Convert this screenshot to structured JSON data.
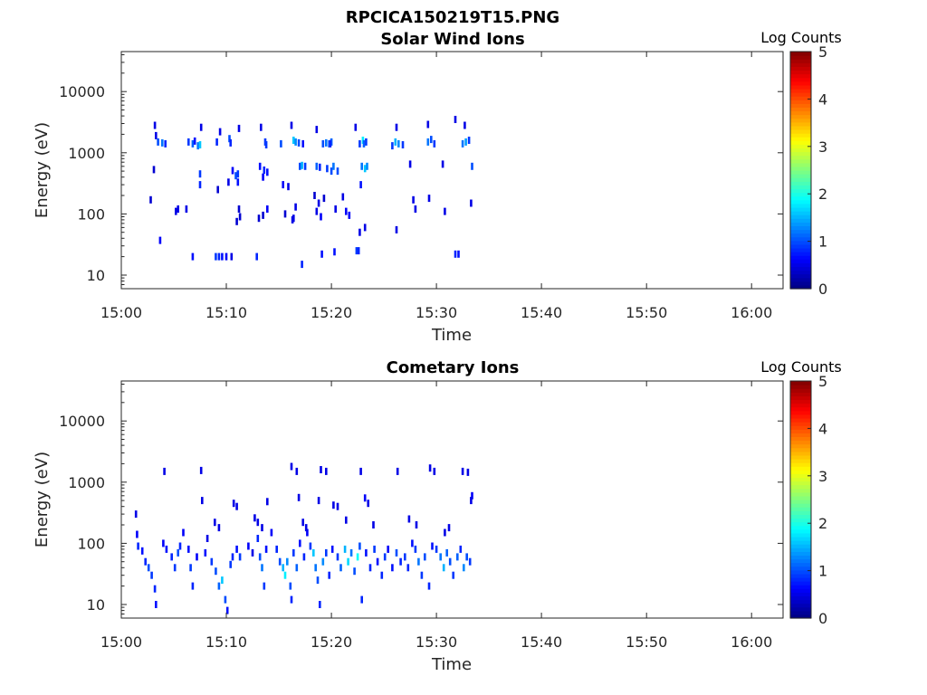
{
  "figure": {
    "title": "RPCICA150219T15.PNG"
  },
  "colorbar": {
    "label": "Log Counts",
    "ticks": [
      "0",
      "1",
      "2",
      "3",
      "4",
      "5"
    ],
    "range": [
      0,
      5
    ],
    "colormap": "jet"
  },
  "chart_data": [
    {
      "type": "heatmap",
      "title": "Solar Wind Ions",
      "xlabel": "Time",
      "ylabel": "Energy (eV)",
      "x_ticks": [
        "15:00",
        "15:10",
        "15:20",
        "15:30",
        "15:40",
        "15:50",
        "16:00"
      ],
      "y_ticks": [
        "10",
        "100",
        "1000",
        "10000"
      ],
      "y_scale": "log",
      "xlim": [
        "15:00",
        "16:03"
      ],
      "ylim": [
        6,
        45000
      ],
      "points": [
        [
          "15:03.2",
          2800,
          0.5
        ],
        [
          "15:03.3",
          1900,
          0.5
        ],
        [
          "15:03.5",
          1500,
          1.0
        ],
        [
          "15:03.9",
          1450,
          1.2
        ],
        [
          "15:04.2",
          1400,
          0.8
        ],
        [
          "15:03.1",
          530,
          0.4
        ],
        [
          "15:02.8",
          170,
          0.4
        ],
        [
          "15:03.7",
          37,
          0.6
        ],
        [
          "15:05.2",
          110,
          0.5
        ],
        [
          "15:05.4",
          120,
          0.5
        ],
        [
          "15:06.4",
          1500,
          0.9
        ],
        [
          "15:06.8",
          1400,
          1.1
        ],
        [
          "15:07.0",
          1550,
          0.7
        ],
        [
          "15:07.3",
          1300,
          1.2
        ],
        [
          "15:07.5",
          1350,
          1.6
        ],
        [
          "15:07.6",
          2600,
          0.5
        ],
        [
          "15:07.5",
          450,
          0.9
        ],
        [
          "15:07.5",
          300,
          0.8
        ],
        [
          "15:06.2",
          120,
          0.5
        ],
        [
          "15:06.8",
          20,
          0.7
        ],
        [
          "15:09.1",
          1500,
          0.8
        ],
        [
          "15:09.4",
          2200,
          0.5
        ],
        [
          "15:09.2",
          250,
          0.4
        ],
        [
          "15:10.3",
          1700,
          1.0
        ],
        [
          "15:10.4",
          1450,
          0.8
        ],
        [
          "15:10.6",
          510,
          0.6
        ],
        [
          "15:10.9",
          420,
          1.0
        ],
        [
          "15:11.1",
          450,
          0.9
        ],
        [
          "15:11.1",
          330,
          0.7
        ],
        [
          "15:11.2",
          2500,
          0.5
        ],
        [
          "15:10.2",
          330,
          0.5
        ],
        [
          "15:11.2",
          120,
          0.4
        ],
        [
          "15:11.3",
          90,
          0.4
        ],
        [
          "15:11.0",
          75,
          0.4
        ],
        [
          "15:09.0",
          20,
          0.9
        ],
        [
          "15:09.3",
          20,
          0.8
        ],
        [
          "15:09.6",
          20,
          0.7
        ],
        [
          "15:10.0",
          20,
          0.6
        ],
        [
          "15:10.5",
          20,
          0.5
        ],
        [
          "15:12.9",
          20,
          0.8
        ],
        [
          "15:13.3",
          2600,
          0.5
        ],
        [
          "15:13.7",
          1500,
          0.9
        ],
        [
          "15:13.8",
          1350,
          0.9
        ],
        [
          "15:13.2",
          600,
          0.7
        ],
        [
          "15:13.6",
          520,
          0.8
        ],
        [
          "15:13.9",
          480,
          0.7
        ],
        [
          "15:13.5",
          400,
          0.6
        ],
        [
          "15:13.9",
          120,
          0.6
        ],
        [
          "15:13.1",
          85,
          0.4
        ],
        [
          "15:13.5",
          95,
          0.4
        ],
        [
          "15:15.2",
          1400,
          1.0
        ],
        [
          "15:16.2",
          2800,
          0.5
        ],
        [
          "15:16.4",
          1600,
          1.6
        ],
        [
          "15:16.6",
          1500,
          1.3
        ],
        [
          "15:16.9",
          1450,
          1.0
        ],
        [
          "15:17.3",
          1400,
          0.7
        ],
        [
          "15:15.4",
          300,
          0.6
        ],
        [
          "15:15.9",
          280,
          0.5
        ],
        [
          "15:16.6",
          130,
          0.5
        ],
        [
          "15:16.3",
          80,
          0.5
        ],
        [
          "15:15.6",
          100,
          0.4
        ],
        [
          "15:16.4",
          85,
          0.5
        ],
        [
          "15:17.0",
          600,
          1.0
        ],
        [
          "15:17.2",
          620,
          1.5
        ],
        [
          "15:17.5",
          600,
          0.9
        ],
        [
          "15:17.2",
          15,
          0.8
        ],
        [
          "15:18.6",
          600,
          1.1
        ],
        [
          "15:18.9",
          580,
          0.8
        ],
        [
          "15:18.6",
          2400,
          0.5
        ],
        [
          "15:18.4",
          200,
          0.4
        ],
        [
          "15:18.8",
          150,
          0.5
        ],
        [
          "15:18.6",
          110,
          0.5
        ],
        [
          "15:19.0",
          90,
          0.6
        ],
        [
          "15:19.3",
          180,
          0.4
        ],
        [
          "15:19.2",
          1400,
          1.0
        ],
        [
          "15:19.5",
          1450,
          1.2
        ],
        [
          "15:19.8",
          1400,
          1.0
        ],
        [
          "15:20.0",
          1500,
          1.1
        ],
        [
          "15:19.9",
          1400,
          0.8
        ],
        [
          "15:19.6",
          550,
          0.9
        ],
        [
          "15:20.0",
          500,
          1.0
        ],
        [
          "15:20.2",
          600,
          1.2
        ],
        [
          "15:20.6",
          500,
          1.0
        ],
        [
          "15:20.4",
          120,
          0.5
        ],
        [
          "15:21.1",
          190,
          0.5
        ],
        [
          "15:21.4",
          110,
          0.6
        ],
        [
          "15:21.7",
          95,
          0.6
        ],
        [
          "15:19.1",
          22,
          0.7
        ],
        [
          "15:20.3",
          24,
          0.7
        ],
        [
          "15:22.3",
          2600,
          0.5
        ],
        [
          "15:22.7",
          1400,
          0.9
        ],
        [
          "15:23.0",
          1600,
          1.8
        ],
        [
          "15:23.1",
          1400,
          1.1
        ],
        [
          "15:23.3",
          1500,
          0.9
        ],
        [
          "15:22.9",
          600,
          1.2
        ],
        [
          "15:23.2",
          550,
          1.6
        ],
        [
          "15:23.4",
          600,
          1.3
        ],
        [
          "15:22.8",
          300,
          0.7
        ],
        [
          "15:22.7",
          50,
          0.5
        ],
        [
          "15:23.2",
          60,
          0.5
        ],
        [
          "15:22.4",
          25,
          0.9
        ],
        [
          "15:22.6",
          25,
          0.8
        ],
        [
          "15:25.8",
          1300,
          0.9
        ],
        [
          "15:26.1",
          1500,
          1.5
        ],
        [
          "15:26.4",
          1400,
          1.3
        ],
        [
          "15:26.8",
          1350,
          0.9
        ],
        [
          "15:26.2",
          2600,
          0.5
        ],
        [
          "15:26.2",
          55,
          0.5
        ],
        [
          "15:27.5",
          650,
          0.5
        ],
        [
          "15:27.8",
          170,
          0.5
        ],
        [
          "15:28.0",
          120,
          0.5
        ],
        [
          "15:29.2",
          1500,
          1.2
        ],
        [
          "15:29.5",
          1650,
          1.0
        ],
        [
          "15:29.8",
          1400,
          0.9
        ],
        [
          "15:29.3",
          180,
          0.5
        ],
        [
          "15:29.2",
          2900,
          0.5
        ],
        [
          "15:30.6",
          650,
          0.5
        ],
        [
          "15:30.8",
          110,
          0.5
        ],
        [
          "15:31.8",
          3500,
          0.5
        ],
        [
          "15:32.5",
          1400,
          1.2
        ],
        [
          "15:32.8",
          1500,
          1.4
        ],
        [
          "15:33.1",
          1600,
          0.9
        ],
        [
          "15:33.4",
          600,
          1.0
        ],
        [
          "15:33.3",
          150,
          0.5
        ],
        [
          "15:32.7",
          2800,
          0.5
        ],
        [
          "15:31.8",
          22,
          0.8
        ],
        [
          "15:32.1",
          22,
          0.7
        ]
      ]
    },
    {
      "type": "heatmap",
      "title": "Cometary Ions",
      "xlabel": "Time",
      "ylabel": "Energy (eV)",
      "x_ticks": [
        "15:00",
        "15:10",
        "15:20",
        "15:30",
        "15:40",
        "15:50",
        "16:00"
      ],
      "y_ticks": [
        "10",
        "100",
        "1000",
        "10000"
      ],
      "y_scale": "log",
      "xlim": [
        "15:00",
        "16:03"
      ],
      "ylim": [
        6,
        45000
      ],
      "points": [
        [
          "15:01.4",
          300,
          0.5
        ],
        [
          "15:01.5",
          140,
          0.6
        ],
        [
          "15:01.6",
          90,
          0.8
        ],
        [
          "15:02.0",
          75,
          0.7
        ],
        [
          "15:02.3",
          50,
          0.8
        ],
        [
          "15:02.6",
          40,
          1.0
        ],
        [
          "15:02.9",
          30,
          0.9
        ],
        [
          "15:03.2",
          18,
          0.8
        ],
        [
          "15:03.3",
          10,
          0.7
        ],
        [
          "15:04.0",
          100,
          0.6
        ],
        [
          "15:04.3",
          80,
          0.7
        ],
        [
          "15:04.8",
          60,
          0.8
        ],
        [
          "15:05.1",
          40,
          0.9
        ],
        [
          "15:05.4",
          70,
          1.0
        ],
        [
          "15:05.6",
          90,
          0.8
        ],
        [
          "15:05.9",
          150,
          0.6
        ],
        [
          "15:06.4",
          80,
          0.7
        ],
        [
          "15:06.6",
          40,
          0.9
        ],
        [
          "15:06.8",
          20,
          0.8
        ],
        [
          "15:07.2",
          60,
          0.6
        ],
        [
          "15:08.0",
          70,
          0.7
        ],
        [
          "15:08.2",
          120,
          0.5
        ],
        [
          "15:08.6",
          50,
          0.9
        ],
        [
          "15:09.0",
          35,
          1.0
        ],
        [
          "15:09.3",
          20,
          1.1
        ],
        [
          "15:09.6",
          25,
          1.6
        ],
        [
          "15:09.9",
          12,
          1.0
        ],
        [
          "15:10.1",
          8,
          0.7
        ],
        [
          "15:10.4",
          45,
          0.9
        ],
        [
          "15:10.6",
          60,
          0.8
        ],
        [
          "15:11.0",
          80,
          0.7
        ],
        [
          "15:11.3",
          60,
          0.9
        ],
        [
          "15:12.1",
          90,
          0.6
        ],
        [
          "15:12.5",
          70,
          0.5
        ],
        [
          "15:13.0",
          120,
          0.8
        ],
        [
          "15:13.2",
          60,
          1.0
        ],
        [
          "15:13.4",
          40,
          1.2
        ],
        [
          "15:13.6",
          20,
          0.9
        ],
        [
          "15:13.8",
          80,
          0.7
        ],
        [
          "15:14.3",
          150,
          0.6
        ],
        [
          "15:14.8",
          80,
          0.8
        ],
        [
          "15:15.1",
          50,
          1.0
        ],
        [
          "15:15.4",
          40,
          1.5
        ],
        [
          "15:15.6",
          30,
          1.8
        ],
        [
          "15:15.8",
          50,
          1.3
        ],
        [
          "15:16.1",
          20,
          1.0
        ],
        [
          "15:16.2",
          12,
          0.8
        ],
        [
          "15:16.4",
          70,
          0.9
        ],
        [
          "15:16.7",
          40,
          1.1
        ],
        [
          "15:17.0",
          100,
          0.7
        ],
        [
          "15:17.4",
          60,
          0.8
        ],
        [
          "15:17.7",
          150,
          0.6
        ],
        [
          "15:18.0",
          90,
          0.9
        ],
        [
          "15:18.3",
          70,
          1.6
        ],
        [
          "15:18.5",
          40,
          1.2
        ],
        [
          "15:18.7",
          25,
          1.0
        ],
        [
          "15:18.9",
          10,
          0.8
        ],
        [
          "15:19.2",
          50,
          1.3
        ],
        [
          "15:19.5",
          70,
          0.9
        ],
        [
          "15:19.8",
          30,
          0.8
        ],
        [
          "15:20.1",
          80,
          0.7
        ],
        [
          "15:20.6",
          60,
          0.9
        ],
        [
          "15:20.9",
          40,
          1.1
        ],
        [
          "15:21.3",
          80,
          1.5
        ],
        [
          "15:21.6",
          50,
          1.7
        ],
        [
          "15:21.9",
          70,
          1.2
        ],
        [
          "15:22.2",
          35,
          1.0
        ],
        [
          "15:22.5",
          60,
          1.9
        ],
        [
          "15:22.7",
          90,
          1.0
        ],
        [
          "15:22.9",
          12,
          0.8
        ],
        [
          "15:23.3",
          70,
          0.7
        ],
        [
          "15:23.7",
          40,
          0.8
        ],
        [
          "15:24.1",
          80,
          0.9
        ],
        [
          "15:24.4",
          50,
          0.7
        ],
        [
          "15:24.8",
          30,
          0.8
        ],
        [
          "15:25.1",
          60,
          0.9
        ],
        [
          "15:25.4",
          80,
          0.6
        ],
        [
          "15:25.8",
          40,
          0.7
        ],
        [
          "15:26.2",
          70,
          1.0
        ],
        [
          "15:26.6",
          50,
          0.8
        ],
        [
          "15:27.0",
          60,
          0.9
        ],
        [
          "15:27.3",
          40,
          0.8
        ],
        [
          "15:27.7",
          100,
          0.7
        ],
        [
          "15:28.0",
          80,
          0.9
        ],
        [
          "15:28.3",
          50,
          1.2
        ],
        [
          "15:28.6",
          30,
          0.9
        ],
        [
          "15:28.9",
          60,
          1.0
        ],
        [
          "15:29.3",
          20,
          0.8
        ],
        [
          "15:29.6",
          90,
          0.7
        ],
        [
          "15:30.0",
          80,
          0.9
        ],
        [
          "15:30.4",
          60,
          1.2
        ],
        [
          "15:30.7",
          40,
          1.5
        ],
        [
          "15:31.0",
          70,
          1.1
        ],
        [
          "15:31.3",
          50,
          1.0
        ],
        [
          "15:31.6",
          30,
          0.9
        ],
        [
          "15:32.0",
          60,
          1.1
        ],
        [
          "15:32.3",
          80,
          0.8
        ],
        [
          "15:32.6",
          40,
          1.3
        ],
        [
          "15:32.9",
          60,
          1.0
        ],
        [
          "15:33.2",
          50,
          0.9
        ],
        [
          "15:04.1",
          1500,
          0.5
        ],
        [
          "15:07.6",
          1550,
          0.5
        ],
        [
          "15:16.2",
          1800,
          0.5
        ],
        [
          "15:16.7",
          1500,
          0.5
        ],
        [
          "15:19.0",
          1600,
          0.5
        ],
        [
          "15:19.5",
          1500,
          0.5
        ],
        [
          "15:22.8",
          1500,
          0.5
        ],
        [
          "15:26.3",
          1500,
          0.5
        ],
        [
          "15:29.4",
          1700,
          0.5
        ],
        [
          "15:29.8",
          1500,
          0.5
        ],
        [
          "15:32.5",
          1500,
          0.5
        ],
        [
          "15:33.0",
          1450,
          0.5
        ],
        [
          "15:33.4",
          600,
          0.6
        ],
        [
          "15:33.3",
          500,
          0.5
        ],
        [
          "15:07.7",
          500,
          0.5
        ],
        [
          "15:10.7",
          450,
          0.5
        ],
        [
          "15:11.0",
          400,
          0.5
        ],
        [
          "15:13.9",
          480,
          0.5
        ],
        [
          "15:16.9",
          560,
          0.5
        ],
        [
          "15:18.8",
          500,
          0.5
        ],
        [
          "15:20.2",
          420,
          0.5
        ],
        [
          "15:20.6",
          400,
          0.5
        ],
        [
          "15:23.2",
          550,
          0.6
        ],
        [
          "15:23.5",
          450,
          0.5
        ],
        [
          "15:08.9",
          220,
          0.5
        ],
        [
          "15:09.3",
          180,
          0.5
        ],
        [
          "15:12.7",
          260,
          0.5
        ],
        [
          "15:13.0",
          220,
          0.5
        ],
        [
          "15:13.4",
          180,
          0.5
        ],
        [
          "15:17.3",
          220,
          0.5
        ],
        [
          "15:17.6",
          180,
          0.5
        ],
        [
          "15:21.4",
          240,
          0.5
        ],
        [
          "15:24.0",
          200,
          0.5
        ],
        [
          "15:27.4",
          250,
          0.5
        ],
        [
          "15:28.1",
          200,
          0.5
        ],
        [
          "15:30.8",
          150,
          0.5
        ],
        [
          "15:31.2",
          180,
          0.5
        ]
      ]
    }
  ]
}
